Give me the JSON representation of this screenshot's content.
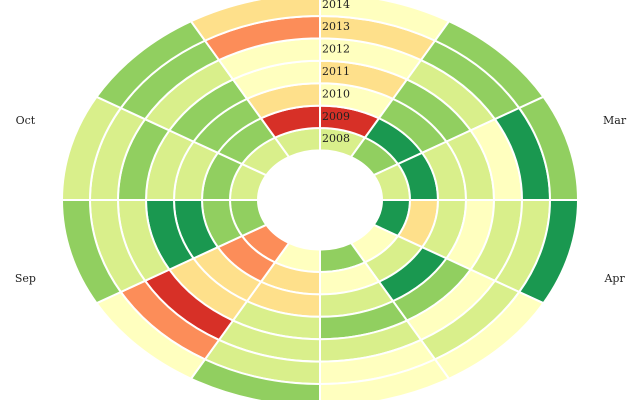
{
  "chart_data": {
    "type": "radial_heatmap",
    "categories": [
      null,
      null,
      "Mar",
      "Apr",
      null,
      null,
      null,
      null,
      "Sep",
      "Oct",
      null,
      null
    ],
    "color_scale": [
      "#d73027",
      "#fc8d59",
      "#fee08b",
      "#ffffbf",
      "#d9ef8b",
      "#91cf60",
      "#1a9850"
    ],
    "clim": [
      1,
      7
    ],
    "series": [
      {
        "name": "2008",
        "values": [
          5,
          6,
          5,
          7,
          4,
          6,
          4,
          2,
          6,
          5,
          5,
          5
        ]
      },
      {
        "name": "2009",
        "values": [
          1,
          7,
          7,
          3,
          5,
          4,
          3,
          2,
          6,
          6,
          6,
          1
        ]
      },
      {
        "name": "2010",
        "values": [
          4,
          6,
          5,
          5,
          7,
          5,
          3,
          3,
          7,
          5,
          6,
          3
        ]
      },
      {
        "name": "2011",
        "values": [
          3,
          6,
          5,
          4,
          6,
          6,
          5,
          3,
          7,
          5,
          6,
          4
        ]
      },
      {
        "name": "2012",
        "values": [
          4,
          5,
          4,
          5,
          4,
          5,
          5,
          1,
          5,
          6,
          5,
          4
        ]
      },
      {
        "name": "2013",
        "values": [
          3,
          6,
          7,
          5,
          5,
          4,
          5,
          2,
          5,
          5,
          6,
          2
        ]
      },
      {
        "name": "2014",
        "values": [
          4,
          6,
          6,
          7,
          4,
          4,
          6,
          4,
          6,
          5,
          6,
          3
        ]
      }
    ]
  }
}
